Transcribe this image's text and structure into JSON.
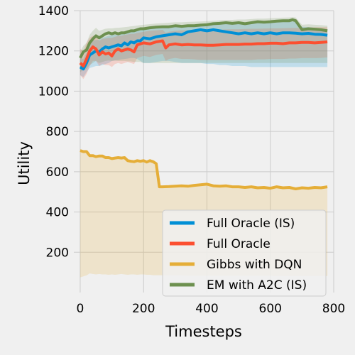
{
  "chart_data": {
    "type": "line",
    "title": "",
    "xlabel": "Timesteps",
    "ylabel": "Utility",
    "xlim": [
      -20,
      800
    ],
    "ylim": [
      0,
      1400
    ],
    "xticks": [
      0,
      200,
      400,
      600,
      800
    ],
    "yticks": [
      200,
      400,
      600,
      800,
      1000,
      1200,
      1400
    ],
    "grid": true,
    "legend_position": "lower-right",
    "series": [
      {
        "name": "Full Oracle (IS)",
        "color": "#008fd5",
        "x": [
          0,
          10,
          20,
          30,
          40,
          50,
          60,
          70,
          80,
          90,
          100,
          110,
          120,
          130,
          140,
          150,
          160,
          170,
          180,
          190,
          200,
          220,
          240,
          260,
          280,
          300,
          320,
          340,
          360,
          380,
          400,
          420,
          440,
          460,
          480,
          500,
          520,
          540,
          560,
          580,
          600,
          620,
          640,
          660,
          680,
          700,
          720,
          740,
          760,
          780
        ],
        "y": [
          1120,
          1110,
          1140,
          1180,
          1190,
          1200,
          1195,
          1210,
          1220,
          1215,
          1220,
          1225,
          1230,
          1225,
          1240,
          1230,
          1245,
          1240,
          1250,
          1250,
          1265,
          1260,
          1270,
          1275,
          1280,
          1285,
          1280,
          1295,
          1300,
          1305,
          1300,
          1305,
          1300,
          1295,
          1290,
          1285,
          1290,
          1285,
          1290,
          1285,
          1290,
          1285,
          1290,
          1290,
          1288,
          1285,
          1287,
          1283,
          1282,
          1278
        ],
        "upper": [
          1165,
          1160,
          1190,
          1235,
          1250,
          1255,
          1255,
          1265,
          1270,
          1275,
          1280,
          1280,
          1285,
          1290,
          1295,
          1295,
          1300,
          1300,
          1305,
          1305,
          1310,
          1312,
          1315,
          1318,
          1320,
          1322,
          1322,
          1325,
          1330,
          1332,
          1335,
          1336,
          1337,
          1337,
          1337,
          1338,
          1338,
          1339,
          1340,
          1340,
          1340,
          1342,
          1343,
          1345,
          1346,
          1320,
          1318,
          1315,
          1312,
          1308
        ],
        "lower": [
          1080,
          1070,
          1095,
          1115,
          1120,
          1125,
          1125,
          1130,
          1135,
          1140,
          1150,
          1152,
          1155,
          1158,
          1160,
          1162,
          1165,
          1165,
          1160,
          1150,
          1140,
          1140,
          1145,
          1150,
          1150,
          1145,
          1140,
          1140,
          1140,
          1140,
          1135,
          1135,
          1130,
          1130,
          1125,
          1125,
          1125,
          1120,
          1120,
          1120,
          1120,
          1120,
          1120,
          1120,
          1120,
          1120,
          1120,
          1120,
          1120,
          1120
        ]
      },
      {
        "name": "Full Oracle",
        "color": "#fc4f30",
        "x": [
          0,
          10,
          20,
          30,
          40,
          50,
          60,
          70,
          80,
          90,
          100,
          110,
          120,
          130,
          140,
          150,
          160,
          170,
          180,
          190,
          200,
          220,
          240,
          260,
          270,
          280,
          300,
          320,
          340,
          360,
          380,
          400,
          420,
          440,
          460,
          480,
          500,
          520,
          540,
          560,
          580,
          600,
          620,
          640,
          660,
          680,
          700,
          720,
          740,
          760,
          780
        ],
        "y": [
          1140,
          1125,
          1160,
          1200,
          1220,
          1210,
          1180,
          1195,
          1185,
          1190,
          1175,
          1200,
          1210,
          1200,
          1205,
          1210,
          1205,
          1195,
          1230,
          1235,
          1240,
          1235,
          1245,
          1250,
          1215,
          1230,
          1235,
          1230,
          1232,
          1230,
          1230,
          1228,
          1228,
          1230,
          1232,
          1232,
          1232,
          1234,
          1234,
          1236,
          1236,
          1238,
          1238,
          1236,
          1240,
          1240,
          1242,
          1242,
          1240,
          1242,
          1245
        ],
        "upper": [
          1210,
          1200,
          1240,
          1265,
          1275,
          1275,
          1250,
          1260,
          1262,
          1265,
          1265,
          1270,
          1275,
          1275,
          1280,
          1282,
          1285,
          1285,
          1290,
          1292,
          1295,
          1300,
          1302,
          1305,
          1290,
          1295,
          1300,
          1302,
          1303,
          1304,
          1305,
          1305,
          1306,
          1306,
          1307,
          1308,
          1308,
          1309,
          1310,
          1310,
          1311,
          1312,
          1312,
          1313,
          1314,
          1314,
          1315,
          1316,
          1317,
          1318,
          1318
        ],
        "lower": [
          1080,
          1060,
          1085,
          1125,
          1150,
          1150,
          1125,
          1135,
          1130,
          1130,
          1120,
          1135,
          1140,
          1135,
          1140,
          1145,
          1140,
          1135,
          1165,
          1170,
          1175,
          1170,
          1180,
          1185,
          1150,
          1160,
          1165,
          1160,
          1160,
          1158,
          1155,
          1155,
          1155,
          1155,
          1155,
          1155,
          1155,
          1155,
          1155,
          1158,
          1158,
          1160,
          1160,
          1160,
          1162,
          1162,
          1164,
          1164,
          1164,
          1165,
          1168
        ]
      },
      {
        "name": "Gibbs with DQN",
        "color": "#e5ae38",
        "x": [
          0,
          10,
          20,
          30,
          40,
          50,
          60,
          70,
          80,
          90,
          100,
          110,
          120,
          130,
          140,
          150,
          160,
          170,
          180,
          190,
          200,
          210,
          220,
          230,
          240,
          250,
          260,
          280,
          300,
          320,
          340,
          360,
          380,
          400,
          420,
          440,
          460,
          480,
          500,
          520,
          540,
          560,
          580,
          600,
          620,
          640,
          660,
          680,
          700,
          720,
          740,
          760,
          780
        ],
        "y": [
          705,
          700,
          700,
          680,
          680,
          675,
          678,
          678,
          670,
          670,
          665,
          668,
          670,
          668,
          670,
          655,
          652,
          650,
          655,
          652,
          655,
          648,
          655,
          650,
          640,
          525,
          525,
          526,
          528,
          530,
          528,
          532,
          535,
          538,
          530,
          528,
          530,
          525,
          525,
          522,
          525,
          520,
          522,
          518,
          525,
          520,
          522,
          515,
          520,
          518,
          522,
          520,
          525
        ],
        "upper": [
          705,
          700,
          700,
          680,
          680,
          675,
          678,
          678,
          670,
          670,
          665,
          668,
          670,
          668,
          670,
          655,
          652,
          650,
          655,
          652,
          655,
          648,
          655,
          650,
          640,
          525,
          525,
          526,
          528,
          530,
          528,
          532,
          535,
          538,
          530,
          528,
          530,
          525,
          525,
          522,
          525,
          520,
          522,
          518,
          525,
          520,
          522,
          515,
          520,
          518,
          522,
          520,
          525
        ],
        "lower": [
          75,
          80,
          85,
          95,
          92,
          90,
          92,
          90,
          90,
          88,
          90,
          88,
          90,
          92,
          90,
          88,
          90,
          90,
          88,
          90,
          90,
          88,
          88,
          86,
          86,
          86,
          86,
          85,
          85,
          85,
          84,
          84,
          84,
          84,
          84,
          84,
          84,
          84,
          83,
          83,
          83,
          83,
          83,
          83,
          82,
          82,
          82,
          82,
          82,
          82,
          82,
          82,
          82
        ]
      },
      {
        "name": "EM with A2C (IS)",
        "color": "#6d904f",
        "x": [
          0,
          10,
          20,
          30,
          40,
          50,
          60,
          70,
          80,
          90,
          100,
          110,
          120,
          130,
          140,
          150,
          160,
          170,
          180,
          190,
          200,
          220,
          240,
          260,
          280,
          300,
          320,
          340,
          360,
          380,
          400,
          420,
          440,
          460,
          480,
          500,
          520,
          540,
          560,
          580,
          600,
          620,
          640,
          660,
          670,
          680,
          700,
          720,
          740,
          760,
          780
        ],
        "y": [
          1165,
          1195,
          1205,
          1240,
          1260,
          1275,
          1265,
          1275,
          1285,
          1290,
          1285,
          1290,
          1285,
          1290,
          1290,
          1295,
          1300,
          1300,
          1305,
          1310,
          1310,
          1315,
          1318,
          1320,
          1320,
          1325,
          1322,
          1325,
          1325,
          1328,
          1330,
          1335,
          1337,
          1340,
          1337,
          1340,
          1335,
          1340,
          1345,
          1343,
          1345,
          1348,
          1350,
          1350,
          1355,
          1350,
          1305,
          1310,
          1308,
          1305,
          1300
        ],
        "upper": [
          1195,
          1225,
          1240,
          1280,
          1300,
          1315,
          1300,
          1305,
          1310,
          1312,
          1312,
          1314,
          1315,
          1316,
          1318,
          1320,
          1322,
          1324,
          1326,
          1328,
          1330,
          1333,
          1336,
          1338,
          1340,
          1342,
          1342,
          1344,
          1345,
          1346,
          1348,
          1350,
          1352,
          1354,
          1354,
          1356,
          1356,
          1358,
          1360,
          1360,
          1362,
          1364,
          1365,
          1366,
          1368,
          1366,
          1330,
          1332,
          1330,
          1328,
          1325
        ],
        "lower": [
          1095,
          1105,
          1110,
          1130,
          1140,
          1150,
          1140,
          1145,
          1150,
          1152,
          1150,
          1152,
          1150,
          1150,
          1150,
          1148,
          1148,
          1145,
          1145,
          1145,
          1140,
          1140,
          1140,
          1140,
          1140,
          1140,
          1140,
          1140,
          1140,
          1140,
          1140,
          1140,
          1140,
          1140,
          1140,
          1140,
          1140,
          1140,
          1140,
          1140,
          1140,
          1140,
          1140,
          1140,
          1140,
          1140,
          1140,
          1140,
          1140,
          1140,
          1140
        ]
      }
    ]
  }
}
